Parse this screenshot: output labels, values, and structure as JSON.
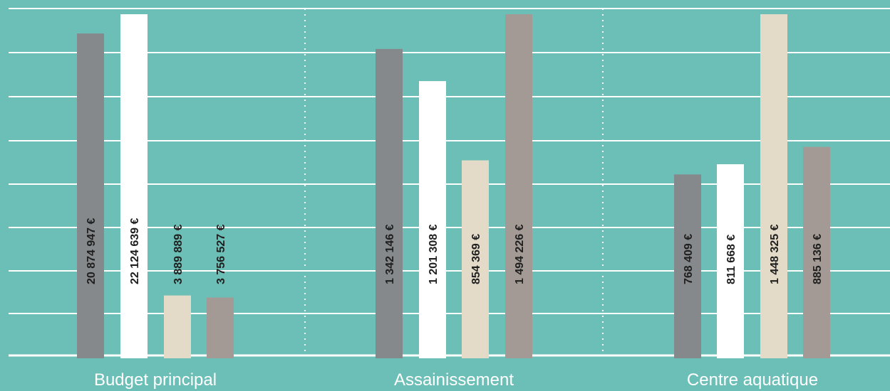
{
  "chart_data": {
    "type": "bar",
    "title": "",
    "xlabel": "",
    "ylabel": "",
    "grid": true,
    "y_tick_labels_shown": false,
    "background_color": "#6cbfb6",
    "grid_color": "#ffffff",
    "series_colors": [
      "#86898b",
      "#ffffff",
      "#e3dbc8",
      "#a39a95"
    ],
    "groups": [
      {
        "name": "Budget principal",
        "values": [
          20874947,
          22124639,
          3889889,
          3756527
        ],
        "labels": [
          "20 874 947 €",
          "22 124 639 €",
          "3 889 889 €",
          "3 756 527 €"
        ]
      },
      {
        "name": "Assainissement",
        "values": [
          1342146,
          1201308,
          854369,
          1494226
        ],
        "labels": [
          "1 342 146 €",
          "1 201 308 €",
          "854 369 €",
          "1 494 226 €"
        ]
      },
      {
        "name": "Centre aquatique",
        "values": [
          768409,
          811668,
          1448325,
          885136
        ],
        "labels": [
          "768 409 €",
          "811 668 €",
          "1 448 325 €",
          "885 136 €"
        ]
      }
    ]
  }
}
